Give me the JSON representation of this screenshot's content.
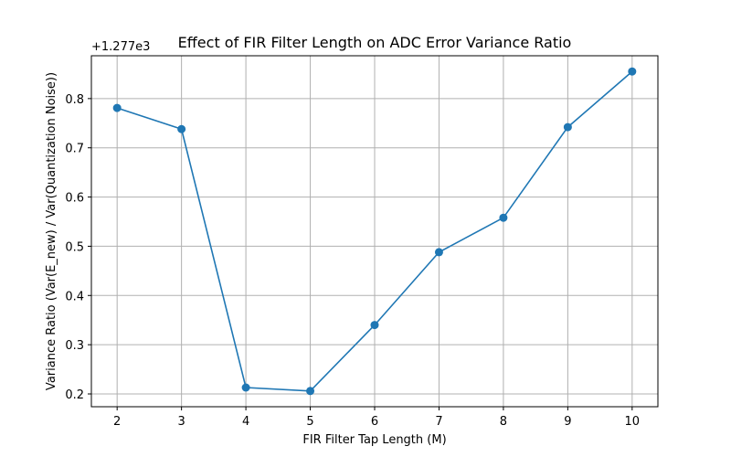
{
  "chart_data": {
    "type": "line",
    "title": "Effect of FIR Filter Length on ADC Error Variance Ratio",
    "xlabel": "FIR Filter Tap Length (M)",
    "ylabel": "Variance Ratio (Var(E_new) / Var(Quantization Noise))",
    "y_offset_label": "+1.277e3",
    "x": [
      2,
      3,
      4,
      5,
      6,
      7,
      8,
      9,
      10
    ],
    "values": [
      0.781,
      0.738,
      0.213,
      0.206,
      0.34,
      0.488,
      0.558,
      0.742,
      0.855
    ],
    "xlim": [
      1.6,
      10.4
    ],
    "ylim": [
      0.174,
      0.887
    ],
    "xticks": [
      2,
      3,
      4,
      5,
      6,
      7,
      8,
      9,
      10
    ],
    "yticks": [
      0.2,
      0.3,
      0.4,
      0.5,
      0.6,
      0.7,
      0.8
    ],
    "ytick_labels": [
      "0.2",
      "0.3",
      "0.4",
      "0.5",
      "0.6",
      "0.7",
      "0.8"
    ],
    "grid": true,
    "color": "#1f77b4",
    "marker": "circle"
  }
}
